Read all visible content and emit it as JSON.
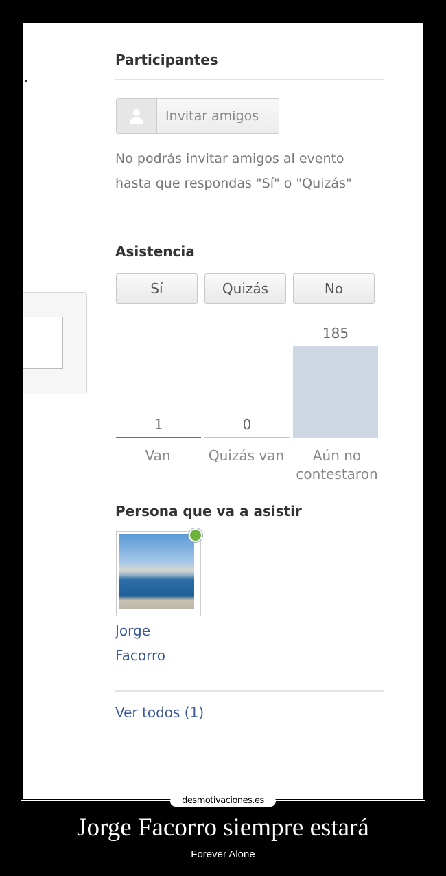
{
  "participants": {
    "heading": "Participantes",
    "invite_label": "Invitar amigos",
    "invite_icon": "user-silhouette-icon",
    "note": "No podrás invitar amigos al evento hasta que respondas \"Sí\" o \"Quizás\""
  },
  "attendance": {
    "heading": "Asistencia",
    "buttons": [
      "Sí",
      "Quizás",
      "No"
    ]
  },
  "chart_data": {
    "type": "bar",
    "categories": [
      "Van",
      "Quizás van",
      "Aún no contestaron"
    ],
    "values": [
      1,
      0,
      185
    ],
    "colors": {
      "bar": "#cdd7e1",
      "baseline_van": "#4d7a8c",
      "baseline_other": "#b7c7d3"
    }
  },
  "attendee": {
    "heading": "Persona que va a asistir",
    "first_name": "Jorge",
    "last_name": "Facorro",
    "online_status_color": "#6fb23c"
  },
  "see_all": "Ver todos (1)",
  "poster": {
    "logo": "desmotivaciones.es",
    "title": "Jorge Facorro siempre estará",
    "subtitle": "Forever Alone"
  }
}
